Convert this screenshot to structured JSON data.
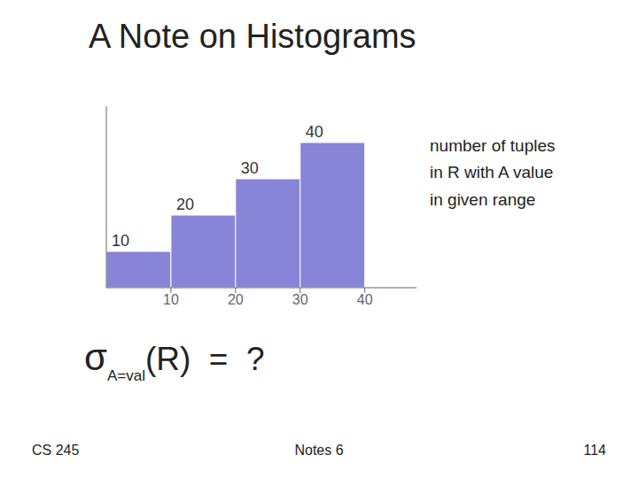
{
  "chart_data": {
    "type": "histogram",
    "title": "A Note on Histograms",
    "bins": [
      0,
      10,
      20,
      30,
      40
    ],
    "values": [
      10,
      20,
      30,
      40
    ],
    "xlim": [
      0,
      48
    ],
    "ylim": [
      0,
      50
    ],
    "xticks": [
      10,
      20,
      30,
      40
    ],
    "data_labels": true,
    "tick_labels": "x",
    "annotations": [
      "number of tuples\nin R with A value\nin given range",
      "σ",
      "A=val",
      "(R)  =  ?",
      "CS 245",
      "Notes 6",
      "114"
    ]
  }
}
